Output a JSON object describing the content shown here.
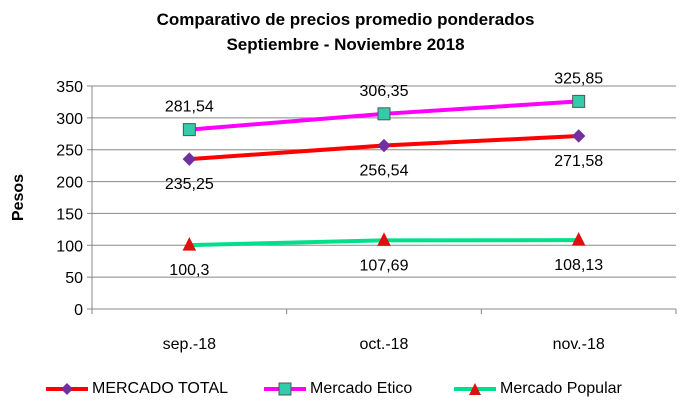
{
  "chart_data": {
    "type": "line",
    "title": "Comparativo de precios promedio ponderados",
    "subtitle": "Septiembre - Noviembre 2018",
    "ylabel": "Pesos",
    "xlabel": "",
    "categories": [
      "sep.-18",
      "oct.-18",
      "nov.-18"
    ],
    "ylim": [
      0,
      350
    ],
    "yticks": [
      0,
      50,
      100,
      150,
      200,
      250,
      300,
      350
    ],
    "grid": true,
    "legend_position": "bottom",
    "series": [
      {
        "name": "MERCADO TOTAL",
        "values": [
          235.25,
          256.54,
          271.58
        ],
        "labels": [
          "235,25",
          "256,54",
          "271,58"
        ],
        "color": "#ff0000",
        "marker": "diamond",
        "marker_color": "#7030a0",
        "label_position": "below"
      },
      {
        "name": "Mercado Etico",
        "values": [
          281.54,
          306.35,
          325.85
        ],
        "labels": [
          "281,54",
          "306,35",
          "325,85"
        ],
        "color": "#ff00ff",
        "marker": "square",
        "marker_color": "#33ccaa",
        "label_position": "above"
      },
      {
        "name": "Mercado Popular",
        "values": [
          100.3,
          107.69,
          108.13
        ],
        "labels": [
          "100,3",
          "107,69",
          "108,13"
        ],
        "color": "#00e08a",
        "marker": "triangle",
        "marker_color": "#dd1111",
        "label_position": "below"
      }
    ]
  }
}
